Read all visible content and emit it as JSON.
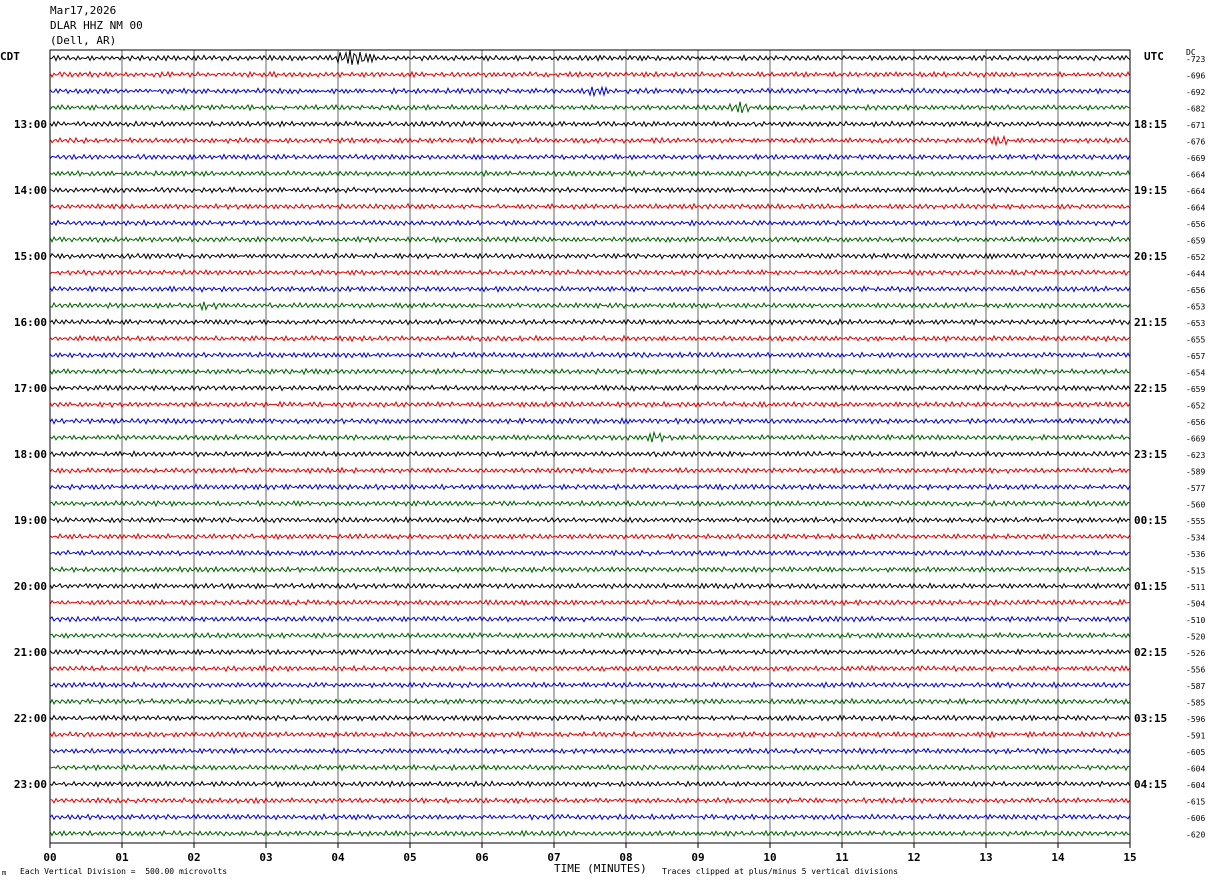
{
  "header": {
    "date": "Mar17,2026",
    "station": "DLAR HHZ NM 00",
    "location": "(Dell, AR)"
  },
  "left_timezone": "CDT",
  "right_timezone": "UTC",
  "dc_label": "DC",
  "footer": {
    "scale_note": "Each Vertical Division =  500.00 microvolts",
    "clip_note": "Traces clipped at plus/minus 5 vertical divisions",
    "corner_mark": "m"
  },
  "chart_data": {
    "type": "line",
    "subtype": "helicorder",
    "xlabel": "TIME (MINUTES)",
    "x_ticks": [
      "00",
      "01",
      "02",
      "03",
      "04",
      "05",
      "06",
      "07",
      "08",
      "09",
      "10",
      "11",
      "12",
      "13",
      "14",
      "15"
    ],
    "xlim": [
      0,
      15
    ],
    "trace_colors": [
      "#000000",
      "#e00000",
      "#0000d0",
      "#006000"
    ],
    "left_hour_labels": [
      "13:00",
      "14:00",
      "15:00",
      "16:00",
      "17:00",
      "18:00",
      "19:00",
      "20:00",
      "21:00",
      "22:00",
      "23:00"
    ],
    "right_hour_labels": [
      "18:15",
      "19:15",
      "20:15",
      "21:15",
      "22:15",
      "23:15",
      "00:15",
      "01:15",
      "02:15",
      "03:15",
      "04:15"
    ],
    "dc_offsets": [
      "-723",
      "-696",
      "-692",
      "-682",
      "-671",
      "-676",
      "-669",
      "-664",
      "-664",
      "-664",
      "-656",
      "-659",
      "-652",
      "-644",
      "-656",
      "-653",
      "-653",
      "-655",
      "-657",
      "-654",
      "-659",
      "-652",
      "-656",
      "-669",
      "-623",
      "-589",
      "-577",
      "-560",
      "-555",
      "-534",
      "-536",
      "-515",
      "-511",
      "-504",
      "-510",
      "-520",
      "-526",
      "-556",
      "-587",
      "-585",
      "-596",
      "-591",
      "-605",
      "-604",
      "-604",
      "-615",
      "-606",
      "-620"
    ],
    "events": [
      {
        "row": 0,
        "minute": 4.2,
        "amplitude": "large"
      },
      {
        "row": 2,
        "minute": 7.6,
        "amplitude": "small"
      },
      {
        "row": 3,
        "minute": 9.6,
        "amplitude": "medium"
      },
      {
        "row": 5,
        "minute": 13.2,
        "amplitude": "small"
      },
      {
        "row": 15,
        "minute": 2.2,
        "amplitude": "small"
      },
      {
        "row": 23,
        "minute": 8.4,
        "amplitude": "small"
      }
    ]
  }
}
